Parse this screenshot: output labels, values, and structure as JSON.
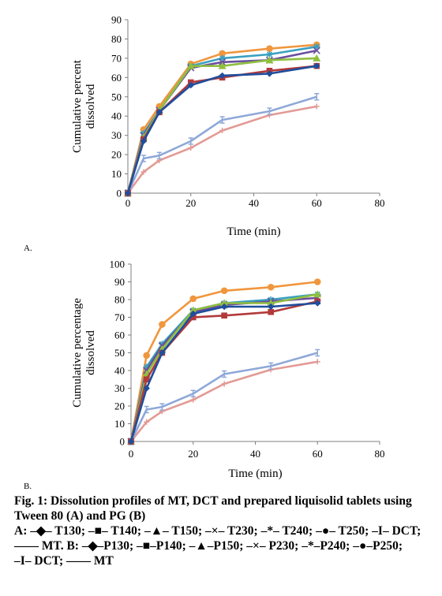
{
  "chart_data": [
    {
      "type": "line",
      "panel_label": "A.",
      "xlabel": "Time (min)",
      "ylabel": "Cumulative percent dissolved",
      "xlim": [
        0,
        80
      ],
      "ylim": [
        0,
        90
      ],
      "xticks": [
        0,
        20,
        40,
        60,
        80
      ],
      "yticks": [
        0,
        10,
        20,
        30,
        40,
        50,
        60,
        70,
        80,
        90
      ],
      "x": [
        0,
        5,
        10,
        20,
        30,
        45,
        60
      ],
      "series": [
        {
          "name": "T130",
          "color": "#1f4e9c",
          "marker": "diamond",
          "values": [
            0,
            27,
            42,
            56,
            61,
            62,
            66
          ]
        },
        {
          "name": "T140",
          "color": "#b23a3a",
          "marker": "square",
          "values": [
            0,
            28,
            42,
            57.5,
            60,
            63.5,
            66
          ]
        },
        {
          "name": "T150",
          "color": "#8fbf3f",
          "marker": "triangle",
          "values": [
            0,
            29,
            43,
            66,
            66,
            69,
            70
          ]
        },
        {
          "name": "T230",
          "color": "#6a4f9e",
          "marker": "x",
          "values": [
            0,
            30,
            43,
            65,
            68,
            69,
            74
          ]
        },
        {
          "name": "T240",
          "color": "#3aa0c0",
          "marker": "star",
          "values": [
            0,
            31,
            43,
            66,
            70,
            72,
            76
          ]
        },
        {
          "name": "T250",
          "color": "#f0963c",
          "marker": "circle",
          "values": [
            0,
            33,
            45,
            67,
            72.5,
            75,
            77
          ]
        },
        {
          "name": "DCT",
          "color": "#8ea8d8",
          "marker": "bar",
          "values": [
            0,
            18,
            19.5,
            27,
            38,
            42.5,
            50
          ]
        },
        {
          "name": "MT",
          "color": "#e39a95",
          "marker": "plus",
          "values": [
            0,
            11,
            17,
            23.5,
            32.5,
            40.5,
            45
          ]
        }
      ]
    },
    {
      "type": "line",
      "panel_label": "B.",
      "xlabel": "Time (min)",
      "ylabel": "Cumulative percentage dissolved",
      "xlim": [
        0,
        80
      ],
      "ylim": [
        0,
        100
      ],
      "xticks": [
        0,
        20,
        40,
        60,
        80
      ],
      "yticks": [
        0,
        10,
        20,
        30,
        40,
        50,
        60,
        70,
        80,
        90,
        100
      ],
      "x": [
        0,
        5,
        10,
        20,
        30,
        45,
        60
      ],
      "series": [
        {
          "name": "P130",
          "color": "#1f4e9c",
          "marker": "diamond",
          "values": [
            0,
            30,
            50,
            72,
            76,
            76,
            78
          ]
        },
        {
          "name": "P140",
          "color": "#b23a3a",
          "marker": "square",
          "values": [
            0,
            35,
            50,
            70,
            71,
            73,
            79
          ]
        },
        {
          "name": "P150",
          "color": "#8fbf3f",
          "marker": "triangle",
          "values": [
            0,
            38,
            52,
            74,
            78,
            78,
            83
          ]
        },
        {
          "name": "P230",
          "color": "#6a4f9e",
          "marker": "x",
          "values": [
            0,
            40,
            54,
            73,
            77,
            79,
            81
          ]
        },
        {
          "name": "P240",
          "color": "#3aa0c0",
          "marker": "star",
          "values": [
            0,
            42,
            55,
            74,
            78,
            80,
            83
          ]
        },
        {
          "name": "P250",
          "color": "#f0963c",
          "marker": "circle",
          "values": [
            0,
            48.5,
            66,
            80.5,
            85,
            87,
            90
          ]
        },
        {
          "name": "DCT",
          "color": "#8ea8d8",
          "marker": "bar",
          "values": [
            0,
            18,
            19.5,
            27,
            38,
            42.5,
            50
          ]
        },
        {
          "name": "MT",
          "color": "#e39a95",
          "marker": "plus",
          "values": [
            0,
            11,
            17,
            23.5,
            32.5,
            40.5,
            45
          ]
        }
      ]
    }
  ],
  "caption": {
    "title": "Fig. 1: Dissolution profiles of MT, DCT and prepared liquisolid tablets using Tween 80 (A) and PG (B)",
    "legend_text": [
      "A: –◆– T130;",
      "–■– T140;",
      "–▲– T150;",
      "–×– T230;",
      "–*– T240;",
      "–●– T250;",
      "–I– DCT;",
      "—— MT.",
      "B: –◆–P130;",
      "–■–P140;",
      "–▲–P150;",
      "–×– P230;",
      "–*–P240;",
      "–●–P250;",
      "–I– DCT;",
      "—— MT"
    ]
  }
}
